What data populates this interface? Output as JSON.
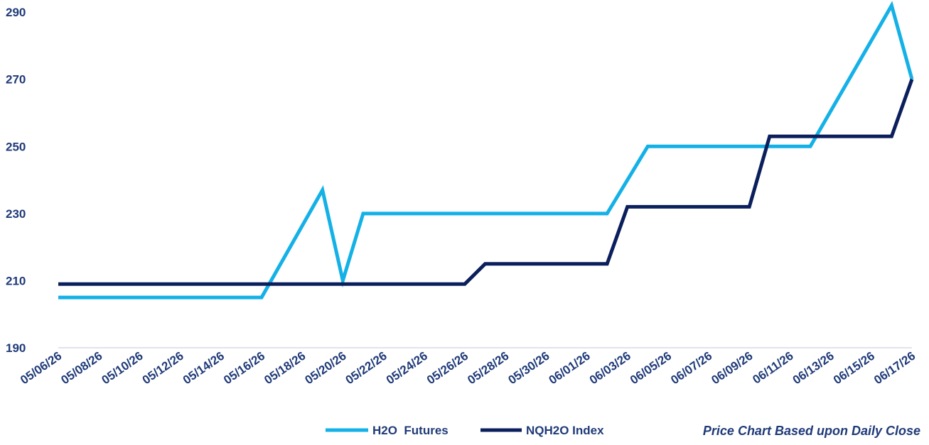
{
  "chart_data": {
    "type": "line",
    "x_tick_labels": [
      "05/06/26",
      "05/08/26",
      "05/10/26",
      "05/12/26",
      "05/14/26",
      "05/16/26",
      "05/18/26",
      "05/20/26",
      "05/22/26",
      "05/24/26",
      "05/26/26",
      "05/28/26",
      "05/30/26",
      "06/01/26",
      "06/03/26",
      "06/05/26",
      "06/07/26",
      "06/09/26",
      "06/11/26",
      "06/13/26",
      "06/15/26",
      "06/17/26"
    ],
    "y_ticks": [
      190,
      210,
      230,
      250,
      270,
      290
    ],
    "ylim": [
      190,
      293
    ],
    "xlim": [
      "05/06/26",
      "06/17/26"
    ],
    "grid": "baseline only",
    "legend_position": "bottom-center",
    "series": [
      {
        "name": "H2O  Futures",
        "color": "#14b1e7",
        "points": [
          [
            "05/06/26",
            205
          ],
          [
            "05/16/26",
            205
          ],
          [
            "05/19/26",
            237
          ],
          [
            "05/19/26",
            237
          ],
          [
            "05/20/26",
            210
          ],
          [
            "05/21/26",
            230
          ],
          [
            "06/02/26",
            230
          ],
          [
            "06/04/26",
            250
          ],
          [
            "06/12/26",
            250
          ],
          [
            "06/16/26",
            292
          ],
          [
            "06/16/26",
            292
          ],
          [
            "06/17/26",
            270
          ]
        ]
      },
      {
        "name": "NQH2O Index",
        "color": "#0b1f5c",
        "points": [
          [
            "05/06/26",
            209
          ],
          [
            "05/26/26",
            209
          ],
          [
            "05/27/26",
            215
          ],
          [
            "06/02/26",
            215
          ],
          [
            "06/03/26",
            232
          ],
          [
            "06/09/26",
            232
          ],
          [
            "06/10/26",
            253
          ],
          [
            "06/16/26",
            253
          ],
          [
            "06/17/26",
            270
          ]
        ]
      }
    ],
    "annotation": "Price Chart Based upon Daily Close"
  }
}
